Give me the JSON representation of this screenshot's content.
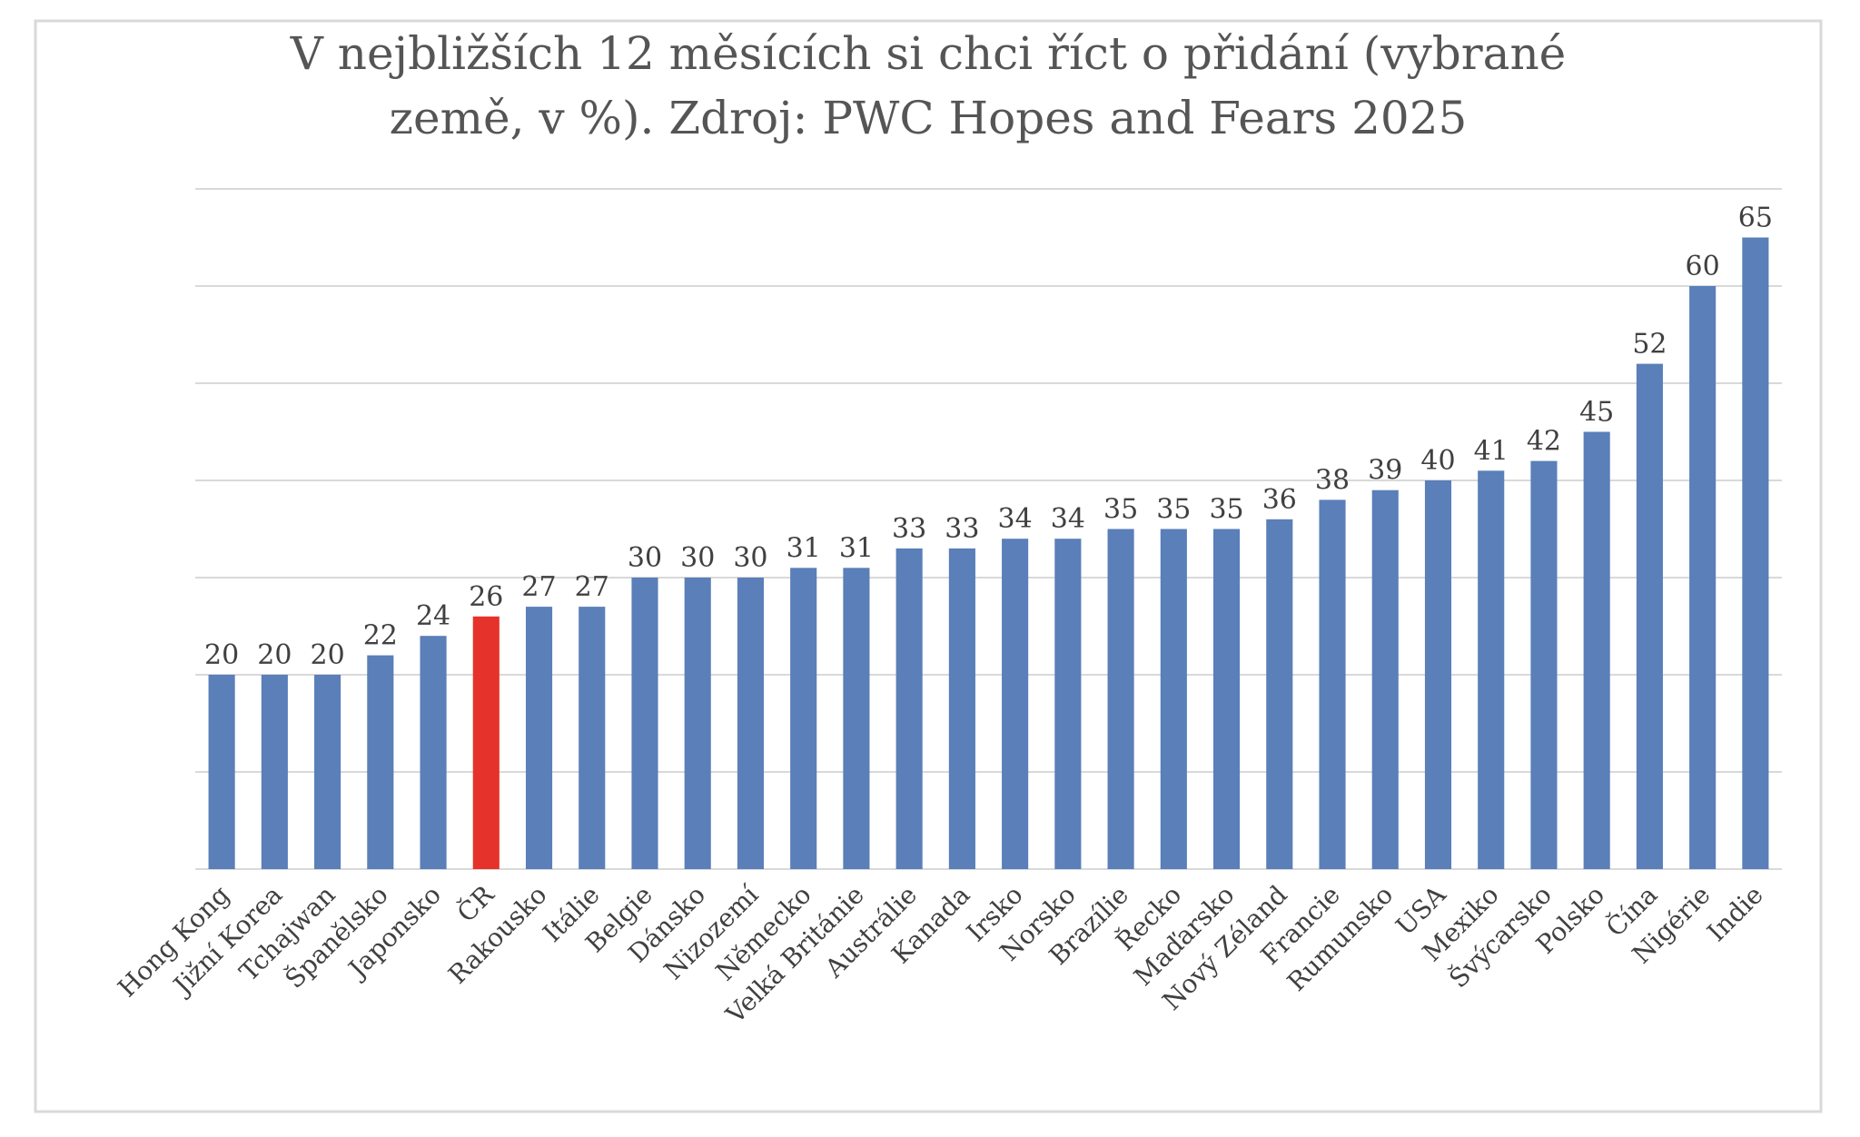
{
  "chart_data": {
    "type": "bar",
    "title": [
      "V nejbližších 12 měsících si chci říct o přidání (vybrané",
      "země, v %). Zdroj: PWC Hopes and Fears 2025"
    ],
    "categories": [
      "Hong Kong",
      "Jižní Korea",
      "Tchajwan",
      "Španělsko",
      "Japonsko",
      "ČR",
      "Rakousko",
      "Itálie",
      "Belgie",
      "Dánsko",
      "Nizozemí",
      "Německo",
      "Velká Británie",
      "Austrálie",
      "Kanada",
      "Irsko",
      "Norsko",
      "Brazílie",
      "Řecko",
      "Maďarsko",
      "Nový Zéland",
      "Francie",
      "Rumunsko",
      "USA",
      "Mexiko",
      "Švýcarsko",
      "Polsko",
      "Čína",
      "Nigérie",
      "Indie"
    ],
    "values": [
      20,
      20,
      20,
      22,
      24,
      26,
      27,
      27,
      30,
      30,
      30,
      31,
      31,
      33,
      33,
      34,
      34,
      35,
      35,
      35,
      36,
      38,
      39,
      40,
      41,
      42,
      45,
      52,
      60,
      65
    ],
    "colors": [
      "#5a7fb9",
      "#5a7fb9",
      "#5a7fb9",
      "#5a7fb9",
      "#5a7fb9",
      "#e5322a",
      "#5a7fb9",
      "#5a7fb9",
      "#5a7fb9",
      "#5a7fb9",
      "#5a7fb9",
      "#5a7fb9",
      "#5a7fb9",
      "#5a7fb9",
      "#5a7fb9",
      "#5a7fb9",
      "#5a7fb9",
      "#5a7fb9",
      "#5a7fb9",
      "#5a7fb9",
      "#5a7fb9",
      "#5a7fb9",
      "#5a7fb9",
      "#5a7fb9",
      "#5a7fb9",
      "#5a7fb9",
      "#5a7fb9",
      "#5a7fb9",
      "#5a7fb9",
      "#5a7fb9"
    ],
    "ylim": [
      0,
      70
    ],
    "yticks": [
      0,
      10,
      20,
      30,
      40,
      50,
      60,
      70
    ],
    "grid": true
  }
}
